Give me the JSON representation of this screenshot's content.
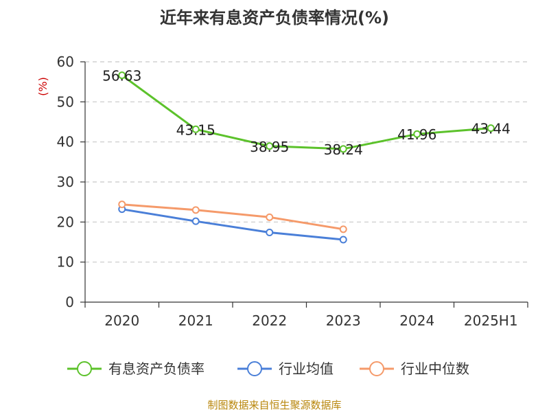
{
  "chart_data": {
    "type": "line",
    "title": "近年来有息资产负债率情况(%)",
    "ylabel": "(%)",
    "xlabel": "",
    "ylim": [
      0,
      60
    ],
    "yticks": [
      0,
      10,
      20,
      30,
      40,
      50,
      60
    ],
    "categories": [
      "2020",
      "2021",
      "2022",
      "2023",
      "2024",
      "2025H1"
    ],
    "grid": true,
    "legend_position": "bottom",
    "series": [
      {
        "name": "有息资产负债率",
        "color": "#5cc22b",
        "values": [
          56.63,
          43.15,
          38.95,
          38.24,
          41.96,
          43.44
        ],
        "labels": [
          "56.63",
          "43.15",
          "38.95",
          "38.24",
          "41.96",
          "43.44"
        ]
      },
      {
        "name": "行业均值",
        "color": "#4a7fd8",
        "values": [
          23.2,
          20.2,
          17.4,
          15.6,
          null,
          null
        ]
      },
      {
        "name": "行业中位数",
        "color": "#f59a6a",
        "values": [
          24.4,
          23.0,
          21.2,
          18.2,
          null,
          null
        ]
      }
    ]
  },
  "footer": "制图数据来自恒生聚源数据库"
}
